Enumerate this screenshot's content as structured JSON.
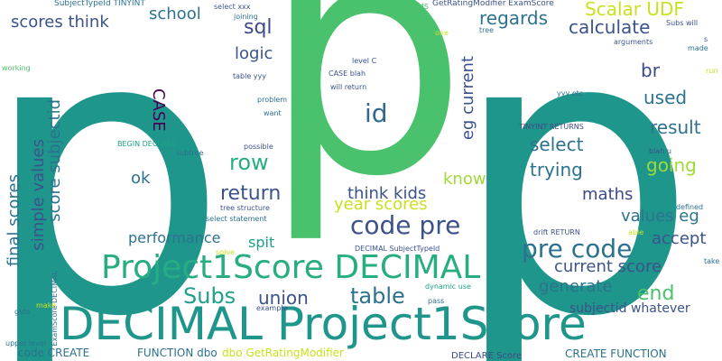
{
  "words": [
    {
      "text": "p",
      "color": "#1f968b"
    },
    {
      "text": "p",
      "color": "#4ac16d"
    },
    {
      "text": "p",
      "color": "#1f968b"
    },
    {
      "text": "DECIMAL Project1Score",
      "color": "#1f968b"
    },
    {
      "text": "Project1Score DECIMAL",
      "color": "#27ad81"
    },
    {
      "text": "code pre",
      "color": "#3b528b"
    },
    {
      "text": "pre code",
      "color": "#2c728e"
    },
    {
      "text": "id",
      "color": "#31688e"
    },
    {
      "text": "sql",
      "color": "#3e4989"
    },
    {
      "text": "row",
      "color": "#27ad81"
    },
    {
      "text": "return",
      "color": "#3b528b"
    },
    {
      "text": "Subs",
      "color": "#1fa187"
    },
    {
      "text": "table",
      "color": "#2c728e"
    },
    {
      "text": "union",
      "color": "#3b528b"
    },
    {
      "text": "end",
      "color": "#4ac16d"
    },
    {
      "text": "select",
      "color": "#2c728e"
    },
    {
      "text": "result",
      "color": "#2c728e"
    },
    {
      "text": "used",
      "color": "#2c728e"
    },
    {
      "text": "br",
      "color": "#3e4989"
    },
    {
      "text": "trying",
      "color": "#2c728e"
    },
    {
      "text": "going",
      "color": "#a0da39"
    },
    {
      "text": "calculate",
      "color": "#3b528b"
    },
    {
      "text": "regards",
      "color": "#2c728e"
    },
    {
      "text": "Scalar UDF",
      "color": "#cae11f"
    },
    {
      "text": "school",
      "color": "#2c728e"
    },
    {
      "text": "logic",
      "color": "#3b528b"
    },
    {
      "text": "scores think",
      "color": "#3b528b"
    },
    {
      "text": "think kids",
      "color": "#3b528b"
    },
    {
      "text": "year scores",
      "color": "#cae11f"
    },
    {
      "text": "know",
      "color": "#a0da39"
    },
    {
      "text": "maths",
      "color": "#3e4989"
    },
    {
      "text": "values eg",
      "color": "#2c728e"
    },
    {
      "text": "accept",
      "color": "#3b528b"
    },
    {
      "text": "current score",
      "color": "#3b528b"
    },
    {
      "text": "generate",
      "color": "#2c728e"
    },
    {
      "text": "performance",
      "color": "#2c728e"
    },
    {
      "text": "spit",
      "color": "#1fa187"
    },
    {
      "text": "ok",
      "color": "#2c728e"
    },
    {
      "text": "subjectid whatever",
      "color": "#3b528b"
    },
    {
      "text": "CASE",
      "color": "#440154"
    },
    {
      "text": "eg current",
      "color": "#3b528b"
    },
    {
      "text": "score subjectid",
      "color": "#2c728e"
    },
    {
      "text": "simple values",
      "color": "#3b528b"
    },
    {
      "text": "final scores",
      "color": "#2c728e"
    },
    {
      "text": "code CREATE",
      "color": "#2c728e"
    },
    {
      "text": "FUNCTION dbo",
      "color": "#2c728e"
    },
    {
      "text": "dbo GetRatingModifier",
      "color": "#cae11f"
    },
    {
      "text": "CREATE FUNCTION",
      "color": "#2c728e"
    },
    {
      "text": "DECLARE Score",
      "color": "#3e4989"
    },
    {
      "text": "upper level",
      "color": "#2c728e"
    },
    {
      "text": "gets",
      "color": "#2c728e"
    },
    {
      "text": "make",
      "color": "#cae11f"
    },
    {
      "text": "ExamScore DECIMAL",
      "color": "#2c728e"
    },
    {
      "text": "example",
      "color": "#3b528b"
    },
    {
      "text": "pass",
      "color": "#2c728e"
    },
    {
      "text": "dynamic use",
      "color": "#1fa187"
    },
    {
      "text": "DECIMAL SubjectTypeId",
      "color": "#3b528b"
    },
    {
      "text": "drift RETURN",
      "color": "#3b528b"
    },
    {
      "text": "solve",
      "color": "#cae11f"
    },
    {
      "text": "able",
      "color": "#cae11f"
    },
    {
      "text": "defined",
      "color": "#2c728e"
    },
    {
      "text": "take",
      "color": "#2c728e"
    },
    {
      "text": "select statement",
      "color": "#2c728e"
    },
    {
      "text": "tree structure",
      "color": "#3b528b"
    },
    {
      "text": "blah u",
      "color": "#3b528b"
    },
    {
      "text": "BEGIN DECLARE",
      "color": "#1fa187"
    },
    {
      "text": "subtree",
      "color": "#2c728e"
    },
    {
      "text": "possible",
      "color": "#3b528b"
    },
    {
      "text": "TINYINT RETURNS",
      "color": "#3e4989"
    },
    {
      "text": "yyy etc",
      "color": "#2c728e"
    },
    {
      "text": "want",
      "color": "#2c728e"
    },
    {
      "text": "problem",
      "color": "#2c728e"
    },
    {
      "text": "table yyy",
      "color": "#3b528b"
    },
    {
      "text": "will return",
      "color": "#3b528b"
    },
    {
      "text": "CASE blah",
      "color": "#3b528b"
    },
    {
      "text": "level C",
      "color": "#3b528b"
    },
    {
      "text": "select xxx",
      "color": "#3b528b"
    },
    {
      "text": "joining",
      "color": "#2c728e"
    },
    {
      "text": "MS",
      "color": "#4ac16d"
    },
    {
      "text": "GetRatingModifier ExamScore",
      "color": "#3b528b"
    },
    {
      "text": "SubjectTypeId TINYINT",
      "color": "#2c728e"
    },
    {
      "text": "one",
      "color": "#cae11f"
    },
    {
      "text": "tree",
      "color": "#2c728e"
    },
    {
      "text": "Subs will",
      "color": "#3b528b"
    },
    {
      "text": "arguments",
      "color": "#3b528b"
    },
    {
      "text": "made",
      "color": "#2c728e"
    },
    {
      "text": "run",
      "color": "#cae11f"
    },
    {
      "text": "working",
      "color": "#4ac16d"
    },
    {
      "text": "s",
      "color": "#3b528b"
    }
  ]
}
